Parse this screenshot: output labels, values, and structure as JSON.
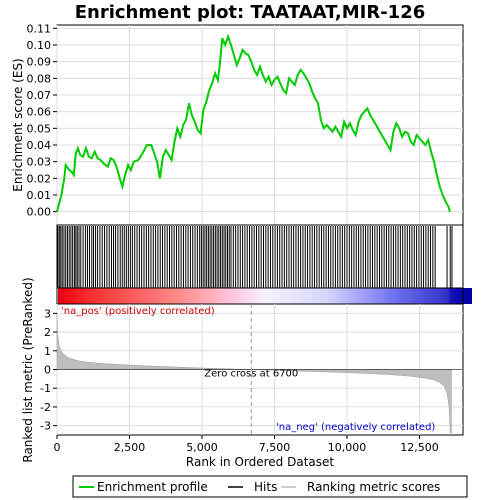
{
  "chart_data": {
    "type": "line",
    "title": "Enrichment plot: TAATAAT,MIR-126",
    "xlabel": "Rank in Ordered Dataset",
    "top_ylabel": "Enrichment score (ES)",
    "bottom_ylabel": "Ranked list metric (PreRanked)",
    "xlim": [
      0,
      14000
    ],
    "x_ticks": [
      0,
      2500,
      5000,
      7500,
      10000,
      12500
    ],
    "x_tick_labels": [
      "0",
      "2,500",
      "5,000",
      "7,500",
      "10,000",
      "12,500"
    ],
    "es_ylim": [
      -0.008,
      0.112
    ],
    "es_ticks": [
      0.0,
      0.01,
      0.02,
      0.03,
      0.04,
      0.05,
      0.06,
      0.07,
      0.08,
      0.09,
      0.1,
      0.11
    ],
    "es_tick_labels": [
      "0.00",
      "0.01",
      "0.02",
      "0.03",
      "0.04",
      "0.05",
      "0.06",
      "0.07",
      "0.08",
      "0.09",
      "0.10",
      "0.11"
    ],
    "metric_ylim": [
      -3.5,
      3.5
    ],
    "metric_ticks": [
      -3,
      -2,
      -1,
      0,
      1,
      2,
      3
    ],
    "metric_tick_labels": [
      "-3",
      "-2",
      "-1",
      "0",
      "1",
      "2",
      "3"
    ],
    "zero_cross_rank": 6700,
    "zero_cross_label": "Zero cross at 6700",
    "pos_label": "'na_pos' (positively correlated)",
    "neg_label": "'na_neg' (negatively correlated)",
    "legend": [
      "Enrichment profile",
      "Hits",
      "Ranking metric scores"
    ],
    "colors": {
      "es_line": "#00cc00",
      "hits": "#000000",
      "metric_fill": "#bebebe",
      "pos_text": "#cc0000",
      "neg_text": "#0000cc",
      "grid": "#dddddd"
    },
    "es_profile": [
      [
        0,
        0.0
      ],
      [
        60,
        0.004
      ],
      [
        150,
        0.01
      ],
      [
        250,
        0.02
      ],
      [
        300,
        0.028
      ],
      [
        420,
        0.025
      ],
      [
        500,
        0.024
      ],
      [
        580,
        0.022
      ],
      [
        650,
        0.035
      ],
      [
        720,
        0.038
      ],
      [
        800,
        0.034
      ],
      [
        900,
        0.033
      ],
      [
        1000,
        0.038
      ],
      [
        1100,
        0.033
      ],
      [
        1200,
        0.032
      ],
      [
        1300,
        0.036
      ],
      [
        1400,
        0.032
      ],
      [
        1500,
        0.031
      ],
      [
        1600,
        0.029
      ],
      [
        1750,
        0.027
      ],
      [
        1850,
        0.032
      ],
      [
        1950,
        0.031
      ],
      [
        2050,
        0.027
      ],
      [
        2150,
        0.021
      ],
      [
        2250,
        0.015
      ],
      [
        2350,
        0.022
      ],
      [
        2450,
        0.028
      ],
      [
        2550,
        0.025
      ],
      [
        2650,
        0.03
      ],
      [
        2800,
        0.031
      ],
      [
        2950,
        0.035
      ],
      [
        3100,
        0.04
      ],
      [
        3250,
        0.04
      ],
      [
        3350,
        0.035
      ],
      [
        3450,
        0.03
      ],
      [
        3550,
        0.02
      ],
      [
        3650,
        0.033
      ],
      [
        3750,
        0.037
      ],
      [
        3850,
        0.034
      ],
      [
        3950,
        0.031
      ],
      [
        4050,
        0.042
      ],
      [
        4150,
        0.05
      ],
      [
        4250,
        0.045
      ],
      [
        4350,
        0.052
      ],
      [
        4450,
        0.055
      ],
      [
        4550,
        0.065
      ],
      [
        4650,
        0.058
      ],
      [
        4750,
        0.054
      ],
      [
        4850,
        0.049
      ],
      [
        4950,
        0.047
      ],
      [
        5050,
        0.061
      ],
      [
        5150,
        0.066
      ],
      [
        5250,
        0.073
      ],
      [
        5350,
        0.077
      ],
      [
        5450,
        0.083
      ],
      [
        5550,
        0.079
      ],
      [
        5600,
        0.086
      ],
      [
        5700,
        0.104
      ],
      [
        5800,
        0.1
      ],
      [
        5900,
        0.105
      ],
      [
        6000,
        0.1
      ],
      [
        6100,
        0.094
      ],
      [
        6200,
        0.088
      ],
      [
        6300,
        0.092
      ],
      [
        6400,
        0.097
      ],
      [
        6500,
        0.095
      ],
      [
        6600,
        0.094
      ],
      [
        6700,
        0.09
      ],
      [
        6800,
        0.085
      ],
      [
        6900,
        0.082
      ],
      [
        7000,
        0.087
      ],
      [
        7100,
        0.082
      ],
      [
        7200,
        0.078
      ],
      [
        7300,
        0.081
      ],
      [
        7400,
        0.076
      ],
      [
        7500,
        0.079
      ],
      [
        7600,
        0.081
      ],
      [
        7700,
        0.077
      ],
      [
        7800,
        0.073
      ],
      [
        7900,
        0.071
      ],
      [
        8000,
        0.08
      ],
      [
        8100,
        0.078
      ],
      [
        8200,
        0.076
      ],
      [
        8300,
        0.082
      ],
      [
        8400,
        0.085
      ],
      [
        8500,
        0.083
      ],
      [
        8600,
        0.08
      ],
      [
        8700,
        0.077
      ],
      [
        8800,
        0.072
      ],
      [
        8900,
        0.068
      ],
      [
        9000,
        0.065
      ],
      [
        9100,
        0.055
      ],
      [
        9200,
        0.05
      ],
      [
        9300,
        0.052
      ],
      [
        9400,
        0.05
      ],
      [
        9500,
        0.048
      ],
      [
        9600,
        0.051
      ],
      [
        9700,
        0.048
      ],
      [
        9800,
        0.045
      ],
      [
        9900,
        0.054
      ],
      [
        10000,
        0.05
      ],
      [
        10100,
        0.053
      ],
      [
        10200,
        0.049
      ],
      [
        10300,
        0.046
      ],
      [
        10400,
        0.054
      ],
      [
        10500,
        0.058
      ],
      [
        10600,
        0.06
      ],
      [
        10700,
        0.062
      ],
      [
        10800,
        0.058
      ],
      [
        10900,
        0.055
      ],
      [
        11000,
        0.052
      ],
      [
        11100,
        0.049
      ],
      [
        11200,
        0.046
      ],
      [
        11300,
        0.043
      ],
      [
        11400,
        0.04
      ],
      [
        11500,
        0.037
      ],
      [
        11600,
        0.048
      ],
      [
        11700,
        0.053
      ],
      [
        11800,
        0.05
      ],
      [
        11900,
        0.045
      ],
      [
        12000,
        0.048
      ],
      [
        12100,
        0.047
      ],
      [
        12200,
        0.042
      ],
      [
        12300,
        0.04
      ],
      [
        12400,
        0.046
      ],
      [
        12500,
        0.044
      ],
      [
        12600,
        0.042
      ],
      [
        12700,
        0.04
      ],
      [
        12800,
        0.043
      ],
      [
        12900,
        0.036
      ],
      [
        13000,
        0.03
      ],
      [
        13100,
        0.022
      ],
      [
        13200,
        0.015
      ],
      [
        13300,
        0.01
      ],
      [
        13400,
        0.006
      ],
      [
        13500,
        0.003
      ],
      [
        13550,
        0.0
      ]
    ],
    "hit_ranks": [
      30,
      80,
      130,
      180,
      240,
      300,
      360,
      420,
      480,
      540,
      600,
      650,
      700,
      760,
      820,
      900,
      980,
      1050,
      1120,
      1200,
      1260,
      1330,
      1400,
      1480,
      1560,
      1640,
      1720,
      1800,
      1880,
      1950,
      2020,
      2100,
      2180,
      2250,
      2320,
      2390,
      2460,
      2530,
      2600,
      2680,
      2760,
      2840,
      2920,
      3000,
      3080,
      3160,
      3240,
      3320,
      3400,
      3480,
      3560,
      3640,
      3720,
      3800,
      3880,
      3960,
      4040,
      4120,
      4200,
      4280,
      4360,
      4440,
      4520,
      4600,
      4680,
      4760,
      4840,
      4920,
      4980,
      5040,
      5100,
      5160,
      5220,
      5280,
      5340,
      5400,
      5460,
      5520,
      5580,
      5640,
      5700,
      5760,
      5820,
      5880,
      5940,
      6000,
      6080,
      6160,
      6240,
      6320,
      6400,
      6480,
      6560,
      6640,
      6720,
      6800,
      6880,
      6960,
      7040,
      7120,
      7200,
      7280,
      7360,
      7440,
      7520,
      7600,
      7680,
      7760,
      7840,
      7920,
      8000,
      8080,
      8160,
      8240,
      8320,
      8400,
      8480,
      8560,
      8640,
      8720,
      8800,
      8880,
      8960,
      9040,
      9120,
      9200,
      9280,
      9360,
      9440,
      9520,
      9600,
      9680,
      9760,
      9840,
      9920,
      10000,
      10080,
      10160,
      10240,
      10320,
      10400,
      10480,
      10560,
      10640,
      10720,
      10800,
      10880,
      10960,
      11040,
      11120,
      11200,
      11280,
      11360,
      11440,
      11520,
      11600,
      11680,
      11760,
      11840,
      11920,
      12000,
      12080,
      12160,
      12240,
      12320,
      12400,
      12480,
      12560,
      12640,
      12720,
      12800,
      12880,
      12960,
      13040,
      13450,
      13560,
      13620
    ],
    "metric_curve": [
      [
        0,
        3.0
      ],
      [
        20,
        1.9
      ],
      [
        80,
        1.2
      ],
      [
        200,
        0.85
      ],
      [
        400,
        0.62
      ],
      [
        700,
        0.48
      ],
      [
        1000,
        0.4
      ],
      [
        1500,
        0.33
      ],
      [
        2000,
        0.28
      ],
      [
        3000,
        0.2
      ],
      [
        4000,
        0.14
      ],
      [
        5000,
        0.08
      ],
      [
        6000,
        0.03
      ],
      [
        6700,
        0.0
      ],
      [
        7500,
        -0.04
      ],
      [
        8500,
        -0.09
      ],
      [
        9500,
        -0.14
      ],
      [
        10500,
        -0.2
      ],
      [
        11500,
        -0.27
      ],
      [
        12200,
        -0.36
      ],
      [
        12700,
        -0.46
      ],
      [
        13000,
        -0.56
      ],
      [
        13200,
        -0.7
      ],
      [
        13350,
        -0.9
      ],
      [
        13450,
        -1.3
      ],
      [
        13520,
        -2.0
      ],
      [
        13560,
        -3.4
      ],
      [
        13600,
        -3.4
      ]
    ]
  }
}
